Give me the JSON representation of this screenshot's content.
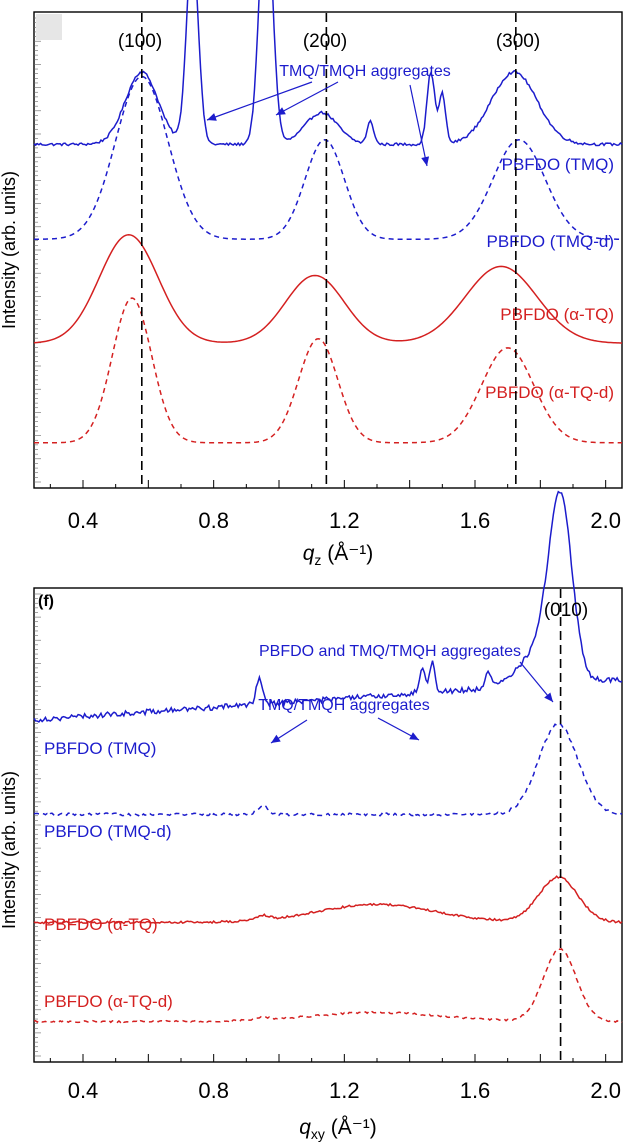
{
  "chart_data": [
    {
      "type": "line",
      "panel_label": "",
      "xlabel": "q",
      "xlabel_sub": "z",
      "xlabel_unit": "(Å⁻¹)",
      "ylabel": "Intensity (arb. units)",
      "xlim": [
        0.25,
        2.05
      ],
      "xticks": [
        0.4,
        0.8,
        1.2,
        1.6,
        2.0
      ],
      "xtick_labels": [
        "0.4",
        "0.8",
        "1.2",
        "1.6",
        "2.0"
      ],
      "reference_lines": [
        {
          "x": 0.58,
          "label": "(100)"
        },
        {
          "x": 1.145,
          "label": "(200)"
        },
        {
          "x": 1.725,
          "label": "(300)"
        }
      ],
      "annotations": [
        {
          "text": "TMQ/TMQH aggregates",
          "points_to_x": [
            0.73,
            0.95,
            1.47
          ]
        }
      ],
      "series": [
        {
          "name": "PBFDO (TMQ)",
          "color": "#1c1ccc",
          "dash": "solid",
          "offset": 0.76,
          "peaks": [
            [
              0.58,
              0.16,
              0.05
            ],
            [
              0.735,
              0.44,
              0.018
            ],
            [
              0.96,
              0.56,
              0.02
            ],
            [
              1.13,
              0.07,
              0.05
            ],
            [
              1.28,
              0.05,
              0.01
            ],
            [
              1.465,
              0.16,
              0.012
            ],
            [
              1.5,
              0.11,
              0.01
            ],
            [
              1.72,
              0.16,
              0.07
            ]
          ]
        },
        {
          "name": "PBFDO (TMQ-d)",
          "color": "#1c1ccc",
          "dash": "dashed",
          "offset": 0.55,
          "peaks": [
            [
              0.58,
              0.36,
              0.08
            ],
            [
              1.14,
              0.22,
              0.06
            ],
            [
              1.735,
              0.22,
              0.08
            ]
          ]
        },
        {
          "name": "PBFDO (α-TQ)",
          "color": "#d42020",
          "dash": "solid",
          "offset": 0.32,
          "peaks": [
            [
              0.54,
              0.24,
              0.09
            ],
            [
              1.11,
              0.15,
              0.09
            ],
            [
              1.68,
              0.17,
              0.11
            ]
          ]
        },
        {
          "name": "PBFDO (α-TQ-d)",
          "color": "#d42020",
          "dash": "dashed",
          "offset": 0.1,
          "peaks": [
            [
              0.55,
              0.32,
              0.06
            ],
            [
              1.12,
              0.23,
              0.06
            ],
            [
              1.7,
              0.21,
              0.08
            ]
          ]
        }
      ]
    },
    {
      "type": "line",
      "panel_label": "(f)",
      "xlabel": "q",
      "xlabel_sub": "xy",
      "xlabel_unit": "(Å⁻¹)",
      "ylabel": "Intensity (arb. units)",
      "xlim": [
        0.25,
        2.05
      ],
      "xticks": [
        0.4,
        0.8,
        1.2,
        1.6,
        2.0
      ],
      "xtick_labels": [
        "0.4",
        "0.8",
        "1.2",
        "1.6",
        "2.0"
      ],
      "reference_lines": [
        {
          "x": 1.862,
          "label": "(010)"
        }
      ],
      "annotations": [
        {
          "text": "PBFDO and TMQ/TMQH aggregates",
          "points_to_x": [
            1.862
          ]
        },
        {
          "text": "TMQ/TMQH aggregates",
          "points_to_x": [
            0.95,
            1.45
          ]
        }
      ],
      "series": [
        {
          "name": "PBFDO (TMQ)",
          "color": "#1c1ccc",
          "dash": "solid",
          "offset": 0.76,
          "slope": 0.05,
          "peaks": [
            [
              0.94,
              0.06,
              0.01
            ],
            [
              1.44,
              0.05,
              0.01
            ],
            [
              1.47,
              0.07,
              0.008
            ],
            [
              1.64,
              0.03,
              0.01
            ],
            [
              1.862,
              0.38,
              0.035
            ],
            [
              1.8,
              0.08,
              0.06
            ]
          ]
        },
        {
          "name": "PBFDO (TMQ-d)",
          "color": "#1c1ccc",
          "dash": "dashed",
          "offset": 0.55,
          "peaks": [
            [
              0.95,
              0.02,
              0.015
            ],
            [
              1.855,
              0.2,
              0.06
            ]
          ]
        },
        {
          "name": "PBFDO (α-TQ)",
          "color": "#d42020",
          "dash": "solid",
          "offset": 0.31,
          "peaks": [
            [
              0.95,
              0.01,
              0.02
            ],
            [
              1.3,
              0.04,
              0.18
            ],
            [
              1.855,
              0.1,
              0.06
            ]
          ]
        },
        {
          "name": "PBFDO (α-TQ-d)",
          "color": "#d42020",
          "dash": "dashed",
          "offset": 0.09,
          "peaks": [
            [
              0.95,
              0.006,
              0.02
            ],
            [
              1.3,
              0.02,
              0.2
            ],
            [
              1.86,
              0.16,
              0.05
            ]
          ]
        }
      ]
    }
  ]
}
